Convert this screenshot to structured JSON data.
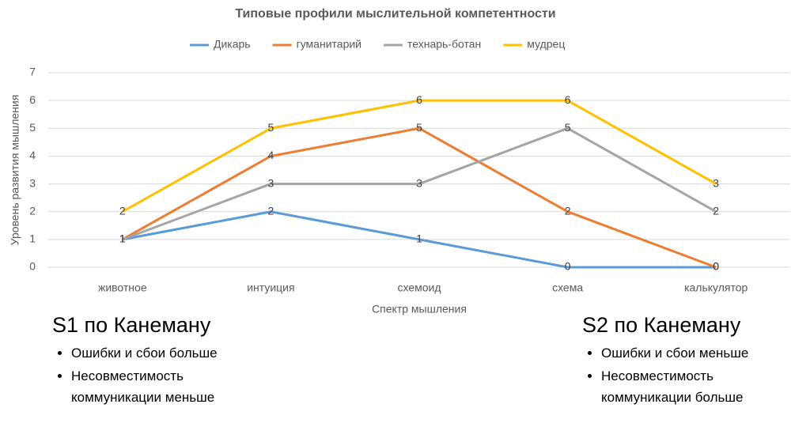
{
  "chart_data": {
    "type": "line",
    "title": "Типовые профили мыслительной компетентности",
    "x_label": "Спектр мышления",
    "y_label": "Уровень развития мышления",
    "categories": [
      "животное",
      "интуиция",
      "схемоид",
      "схема",
      "калькулятор"
    ],
    "series": [
      {
        "name": "Дикарь",
        "color": "#5b9bd5",
        "values": [
          1,
          2,
          1,
          0,
          0
        ]
      },
      {
        "name": "гуманитарий",
        "color": "#ed7d31",
        "values": [
          1,
          4,
          5,
          2,
          0
        ]
      },
      {
        "name": "технарь-ботан",
        "color": "#a5a5a5",
        "values": [
          1,
          3,
          3,
          5,
          2
        ]
      },
      {
        "name": "мудрец",
        "color": "#ffc000",
        "values": [
          2,
          5,
          6,
          6,
          3
        ]
      }
    ],
    "ylim": [
      0,
      7
    ],
    "yticks": [
      0,
      1,
      2,
      3,
      4,
      5,
      6,
      7
    ],
    "grid": true,
    "legend": "top",
    "data_labels": true
  },
  "left_note": {
    "title": "S1 по Канеману",
    "bullets": [
      "Ошибки и сбои больше",
      "Несовместимость коммуникации меньше"
    ]
  },
  "right_note": {
    "title": "S2 по Канеману",
    "bullets": [
      "Ошибки и сбои меньше",
      "Несовместимость коммуникации больше"
    ]
  }
}
